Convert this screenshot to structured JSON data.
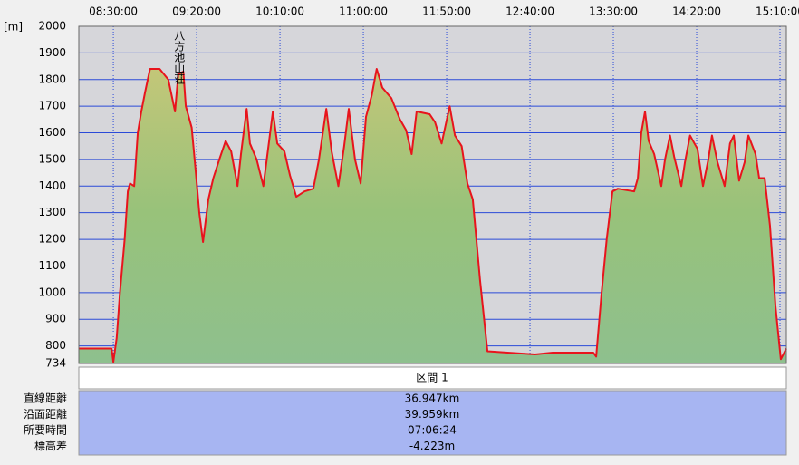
{
  "chart_data": {
    "type": "area",
    "y_unit": "[m]",
    "x": [
      489.3,
      509,
      510,
      512,
      514,
      516.8,
      518.7,
      520,
      522.5,
      524.7,
      526.8,
      529,
      532,
      537.8,
      543,
      547,
      549,
      552,
      553.5,
      557,
      559.5,
      561.6,
      563.8,
      567,
      570,
      573.6,
      577.4,
      580.7,
      584.5,
      586.6,
      590,
      592,
      596,
      600,
      603.5,
      605.7,
      608.4,
      612.7,
      616,
      619.8,
      624.7,
      630,
      633.4,
      637.8,
      641,
      645,
      648.5,
      651.3,
      655,
      658.4,
      661.6,
      665,
      668,
      671.4,
      676.8,
      682,
      685.7,
      689,
      692,
      699.8,
      703,
      707,
      711.8,
      715,
      719,
      722.5,
      725.7,
      730,
      734.5,
      746.5,
      763,
      773.6,
      798,
      799.7,
      803,
      806,
      809.5,
      812.7,
      822.5,
      824.7,
      826.8,
      829,
      831.2,
      834.5,
      838.8,
      841,
      844,
      846.5,
      850.8,
      853,
      856,
      860.5,
      863.8,
      867,
      869.2,
      872.5,
      876.8,
      880,
      882.3,
      885.5,
      888.8,
      891,
      895.3,
      897.5,
      900.8,
      904,
      907.3,
      910.5,
      913.8
    ],
    "series": [
      {
        "color": "#e8141c",
        "values": [
          790,
          790,
          740,
          830,
          1000,
          1200,
          1380,
          1410,
          1400,
          1600,
          1680,
          1750,
          1840,
          1840,
          1800,
          1680,
          1820,
          1830,
          1700,
          1620,
          1450,
          1300,
          1190,
          1350,
          1430,
          1500,
          1570,
          1530,
          1400,
          1520,
          1690,
          1560,
          1500,
          1400,
          1570,
          1680,
          1560,
          1530,
          1440,
          1360,
          1380,
          1390,
          1500,
          1690,
          1530,
          1400,
          1550,
          1690,
          1500,
          1410,
          1660,
          1740,
          1840,
          1770,
          1730,
          1650,
          1610,
          1520,
          1680,
          1670,
          1640,
          1560,
          1700,
          1590,
          1550,
          1410,
          1350,
          1050,
          780,
          775,
          768,
          775,
          775,
          760,
          1000,
          1200,
          1380,
          1390,
          1380,
          1430,
          1600,
          1680,
          1570,
          1520,
          1400,
          1500,
          1590,
          1510,
          1400,
          1490,
          1590,
          1540,
          1400,
          1500,
          1590,
          1490,
          1400,
          1560,
          1590,
          1420,
          1490,
          1590,
          1520,
          1430,
          1430,
          1250,
          950,
          750,
          790
        ]
      }
    ],
    "xlim": [
      489.3,
      913.8
    ],
    "xticks": [
      {
        "value": 510,
        "label": "08:30:00"
      },
      {
        "value": 560,
        "label": "09:20:00"
      },
      {
        "value": 610,
        "label": "10:10:00"
      },
      {
        "value": 660,
        "label": "11:00:00"
      },
      {
        "value": 710,
        "label": "11:50:00"
      },
      {
        "value": 760,
        "label": "12:40:00"
      },
      {
        "value": 810,
        "label": "13:30:00"
      },
      {
        "value": 860,
        "label": "14:20:00"
      },
      {
        "value": 910,
        "label": "15:10:00"
      }
    ],
    "ylim": [
      734,
      2000
    ],
    "yticks": [
      734,
      800,
      900,
      1000,
      1100,
      1200,
      1300,
      1400,
      1500,
      1600,
      1700,
      1800,
      1900,
      2000
    ],
    "grid": true,
    "annotation": {
      "text": "八方池山荘",
      "x": 549.5
    }
  },
  "table": {
    "header": "区間 1",
    "rows": [
      [
        "直線距離",
        "36.947km"
      ],
      [
        "沿面距離",
        "39.959km"
      ],
      [
        "所要時間",
        "07:06:24"
      ],
      [
        "標高差",
        "-4.223m"
      ]
    ]
  }
}
